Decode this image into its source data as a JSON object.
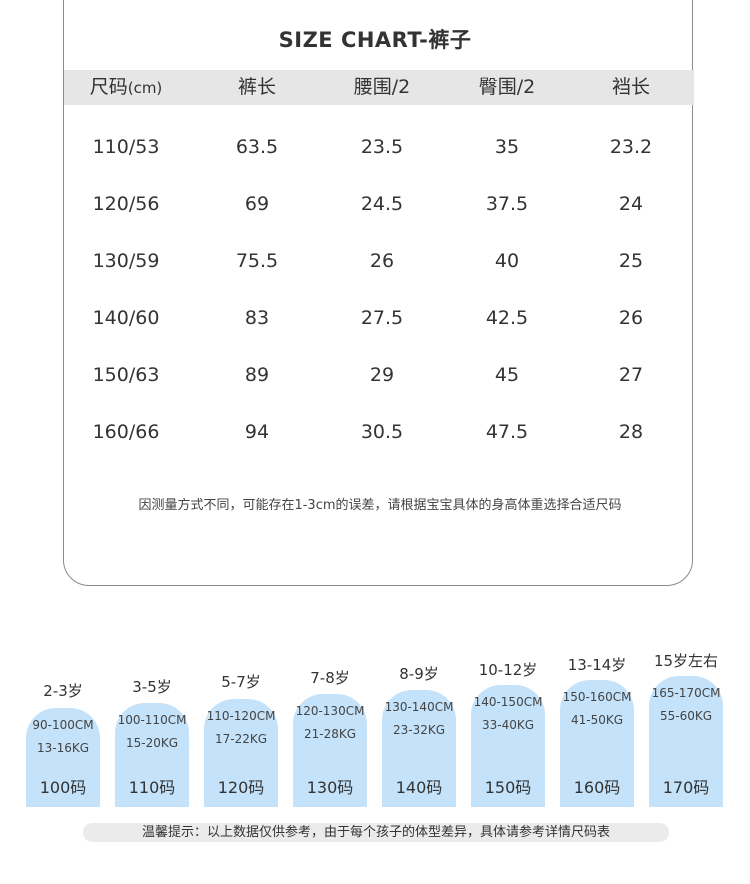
{
  "title": "SIZE CHART-裤子",
  "table": {
    "headers": [
      {
        "label": "尺码",
        "unit": "(cm)"
      },
      {
        "label": "裤长",
        "unit": ""
      },
      {
        "label": "腰围/2",
        "unit": ""
      },
      {
        "label": "臀围/2",
        "unit": ""
      },
      {
        "label": "裆长",
        "unit": ""
      }
    ],
    "rows": [
      [
        "110/53",
        "63.5",
        "23.5",
        "35",
        "23.2"
      ],
      [
        "120/56",
        "69",
        "24.5",
        "37.5",
        "24"
      ],
      [
        "130/59",
        "75.5",
        "26",
        "40",
        "25"
      ],
      [
        "140/60",
        "83",
        "27.5",
        "42.5",
        "26"
      ],
      [
        "150/63",
        "89",
        "29",
        "45",
        "27"
      ],
      [
        "160/66",
        "94",
        "30.5",
        "47.5",
        "28"
      ]
    ]
  },
  "note": "因测量方式不同，可能存在1-3cm的误差，请根据宝宝具体的身高体重选择合适尺码",
  "age_guide": [
    {
      "age": "2-3岁",
      "height": "90-100CM",
      "weight": "13-16KG",
      "size": "100码"
    },
    {
      "age": "3-5岁",
      "height": "100-110CM",
      "weight": "15-20KG",
      "size": "110码"
    },
    {
      "age": "5-7岁",
      "height": "110-120CM",
      "weight": "17-22KG",
      "size": "120码"
    },
    {
      "age": "7-8岁",
      "height": "120-130CM",
      "weight": "21-28KG",
      "size": "130码"
    },
    {
      "age": "8-9岁",
      "height": "130-140CM",
      "weight": "23-32KG",
      "size": "140码"
    },
    {
      "age": "10-12岁",
      "height": "140-150CM",
      "weight": "33-40KG",
      "size": "150码"
    },
    {
      "age": "13-14岁",
      "height": "150-160CM",
      "weight": "41-50KG",
      "size": "160码"
    },
    {
      "age": "15岁左右",
      "height": "165-170CM",
      "weight": "55-60KG",
      "size": "170码"
    }
  ],
  "tip": "温馨提示：以上数据仅供参考，由于每个孩子的体型差异，具体请参考详情尺码表",
  "colors": {
    "pill": "#c4e2f9",
    "header_bar": "#e6e6e6",
    "tip_bar": "#ebebeb"
  }
}
